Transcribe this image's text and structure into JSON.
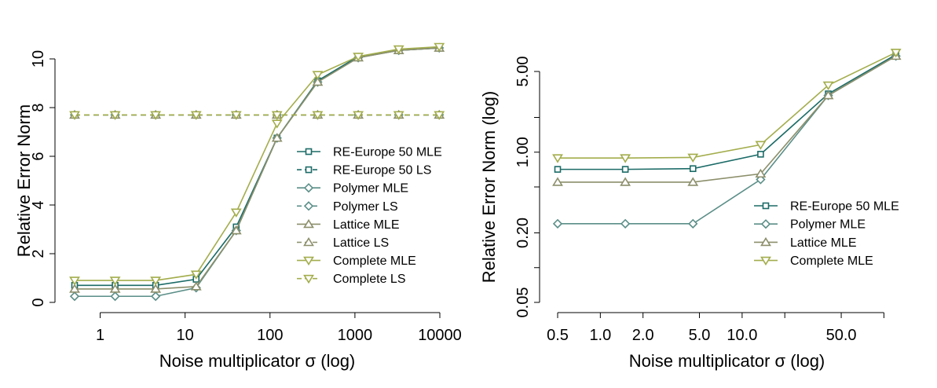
{
  "colors": {
    "RE-Europe 50": "#1b6b67",
    "Polymer": "#5b8e88",
    "Lattice": "#8c8f6b",
    "Complete": "#a3ad4c"
  },
  "chart_data": [
    {
      "type": "line",
      "xscale": "log",
      "xlabel": "Noise multiplicator σ (log)",
      "ylabel": "Relative Error Norm",
      "xlim": [
        0.5,
        10000
      ],
      "ylim": [
        0,
        10
      ],
      "xticks": [
        1,
        10,
        100,
        1000,
        10000
      ],
      "xtick_labels": [
        "1",
        "10",
        "100",
        "1000",
        "10000"
      ],
      "yticks": [
        0,
        2,
        4,
        6,
        8,
        10
      ],
      "ytick_labels": [
        "0",
        "2",
        "4",
        "6",
        "8",
        "10"
      ],
      "legend_position": "center-right",
      "x": [
        0.5,
        1.5,
        4.5,
        13.5,
        40,
        121,
        364,
        1094,
        3281,
        9843
      ],
      "series": [
        {
          "name": "RE-Europe 50 MLE",
          "marker": "square",
          "dash": "solid",
          "values": [
            0.7,
            0.7,
            0.7,
            0.95,
            3.1,
            6.75,
            9.1,
            10.1,
            10.35,
            10.45
          ]
        },
        {
          "name": "RE-Europe 50 LS",
          "marker": "square",
          "dash": "dashed",
          "values": [
            7.7,
            7.7,
            7.7,
            7.7,
            7.7,
            7.7,
            7.7,
            7.7,
            7.7,
            7.7
          ]
        },
        {
          "name": "Polymer MLE",
          "marker": "diamond",
          "dash": "solid",
          "values": [
            0.25,
            0.25,
            0.25,
            0.6,
            2.95,
            6.75,
            9.05,
            10.05,
            10.35,
            10.45
          ]
        },
        {
          "name": "Polymer LS",
          "marker": "diamond",
          "dash": "dashed",
          "values": [
            7.7,
            7.7,
            7.7,
            7.7,
            7.7,
            7.7,
            7.7,
            7.7,
            7.7,
            7.7
          ]
        },
        {
          "name": "Lattice MLE",
          "marker": "triangle-up",
          "dash": "solid",
          "values": [
            0.55,
            0.55,
            0.55,
            0.65,
            2.95,
            6.75,
            9.05,
            10.05,
            10.35,
            10.45
          ]
        },
        {
          "name": "Lattice LS",
          "marker": "triangle-up",
          "dash": "dashed",
          "values": [
            7.7,
            7.7,
            7.7,
            7.7,
            7.7,
            7.7,
            7.7,
            7.7,
            7.7,
            7.7
          ]
        },
        {
          "name": "Complete MLE",
          "marker": "triangle-down",
          "dash": "solid",
          "values": [
            0.9,
            0.9,
            0.9,
            1.15,
            3.7,
            7.35,
            9.35,
            10.1,
            10.4,
            10.5
          ]
        },
        {
          "name": "Complete LS",
          "marker": "triangle-down",
          "dash": "dashed",
          "values": [
            7.7,
            7.7,
            7.7,
            7.7,
            7.7,
            7.7,
            7.7,
            7.7,
            7.7,
            7.7
          ]
        }
      ]
    },
    {
      "type": "line",
      "xscale": "log",
      "yscale": "log",
      "xlabel": "Noise multiplicator σ (log)",
      "ylabel": "Relative Error Norm (log)",
      "xlim": [
        0.5,
        122
      ],
      "ylim": [
        0.05,
        5
      ],
      "xticks": [
        0.5,
        1.0,
        2.0,
        5.0,
        10.0,
        20.0,
        50.0,
        100.0
      ],
      "xtick_labels": [
        "0.5",
        "1.0",
        "2.0",
        "5.0",
        "10.0",
        "",
        "50.0",
        ""
      ],
      "yticks": [
        0.05,
        0.1,
        0.2,
        0.5,
        1.0,
        2.0,
        5.0
      ],
      "ytick_labels": [
        "0.05",
        "",
        "0.20",
        "",
        "1.00",
        "",
        "5.00"
      ],
      "legend_position": "bottom-right",
      "x": [
        0.5,
        1.5,
        4.5,
        13.5,
        40.5,
        121.5
      ],
      "series": [
        {
          "name": "RE-Europe 50 MLE",
          "marker": "square",
          "dash": "solid",
          "values": [
            0.71,
            0.71,
            0.72,
            0.96,
            3.2,
            7.0
          ]
        },
        {
          "name": "Polymer MLE",
          "marker": "diamond",
          "dash": "solid",
          "values": [
            0.24,
            0.24,
            0.24,
            0.58,
            3.1,
            6.8
          ]
        },
        {
          "name": "Lattice MLE",
          "marker": "triangle-up",
          "dash": "solid",
          "values": [
            0.55,
            0.55,
            0.55,
            0.65,
            3.1,
            6.8
          ]
        },
        {
          "name": "Complete MLE",
          "marker": "triangle-down",
          "dash": "solid",
          "values": [
            0.89,
            0.89,
            0.9,
            1.16,
            3.8,
            7.3
          ]
        }
      ]
    }
  ]
}
